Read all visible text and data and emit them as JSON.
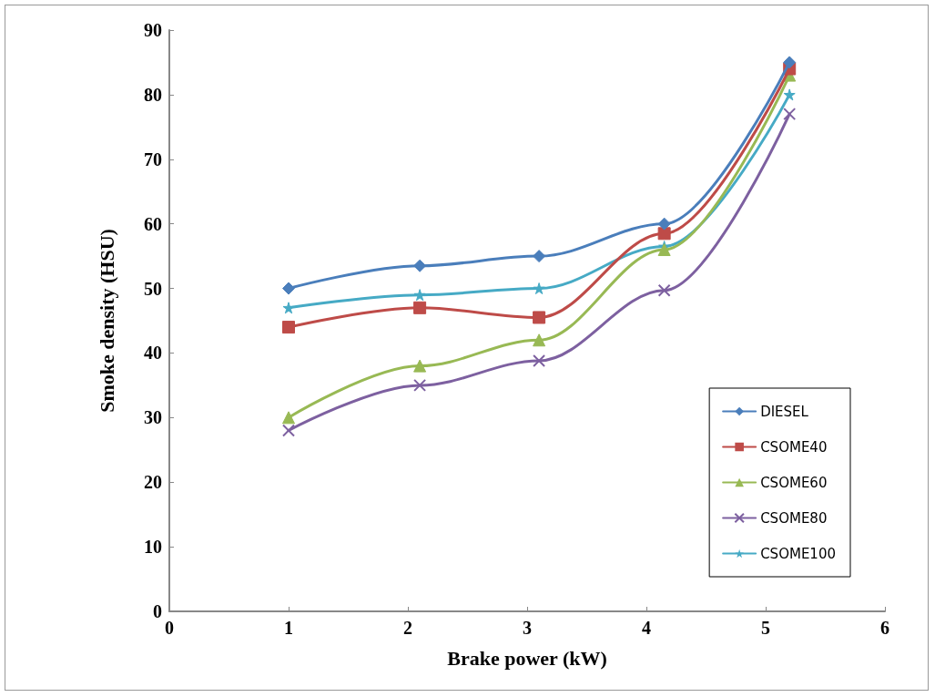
{
  "chart_data": {
    "type": "line",
    "xlabel": "Brake power (kW)",
    "ylabel": "Smoke density (HSU)",
    "x": [
      1.0,
      2.1,
      3.1,
      4.15,
      5.2
    ],
    "series": [
      {
        "name": "DIESEL",
        "color": "#4a7ebb",
        "marker": "diamond",
        "values": [
          50,
          53.5,
          55,
          60,
          85
        ]
      },
      {
        "name": "CSOME40",
        "color": "#be4b48",
        "marker": "square",
        "values": [
          44,
          47,
          45.5,
          58.5,
          84
        ]
      },
      {
        "name": "CSOME60",
        "color": "#98b954",
        "marker": "triangle",
        "values": [
          30,
          38,
          42,
          56,
          83
        ]
      },
      {
        "name": "CSOME80",
        "color": "#7d60a0",
        "marker": "cross",
        "values": [
          28,
          35,
          38.8,
          49.7,
          77
        ]
      },
      {
        "name": "CSOME100",
        "color": "#46aac5",
        "marker": "star",
        "values": [
          47,
          49,
          50,
          56.5,
          80
        ]
      }
    ],
    "xlim": [
      0,
      6
    ],
    "xticks": [
      0,
      1,
      2,
      3,
      4,
      5,
      6
    ],
    "ylim": [
      0,
      90
    ],
    "yticks": [
      0,
      10,
      20,
      30,
      40,
      50,
      60,
      70,
      80,
      90
    ],
    "grid": false,
    "legend": "right"
  }
}
